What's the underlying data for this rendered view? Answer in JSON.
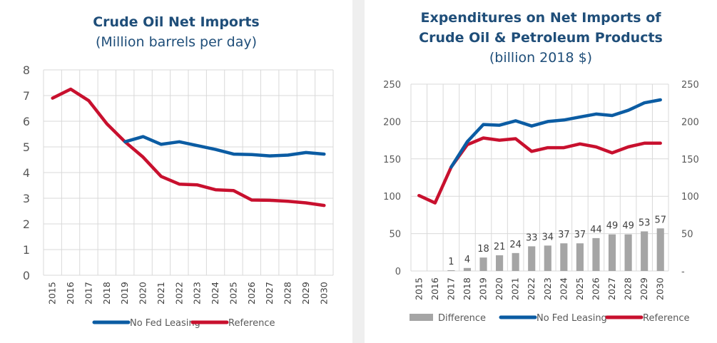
{
  "chart_data": [
    {
      "type": "line",
      "title": "Crude Oil Net Imports",
      "subtitle": "(Million barrels per day)",
      "xlabel": "",
      "ylabel": "",
      "ylim": [
        0,
        8
      ],
      "yticks": [
        "0",
        "1",
        "2",
        "3",
        "4",
        "5",
        "6",
        "7",
        "8"
      ],
      "categories": [
        "2015",
        "2016",
        "2017",
        "2018",
        "2019",
        "2020",
        "2021",
        "2022",
        "2023",
        "2024",
        "2025",
        "2026",
        "2027",
        "2028",
        "2029",
        "2030"
      ],
      "grid": true,
      "legend_position": "bottom",
      "series": [
        {
          "name": "No Fed Leasing",
          "color": "#0b5ca3",
          "values": [
            null,
            null,
            null,
            null,
            5.2,
            5.4,
            5.1,
            5.2,
            5.05,
            4.9,
            4.72,
            4.7,
            4.65,
            4.68,
            4.78,
            4.72
          ]
        },
        {
          "name": "Reference",
          "color": "#c8102e",
          "values": [
            6.9,
            7.25,
            6.8,
            5.9,
            5.2,
            4.6,
            3.85,
            3.55,
            3.52,
            3.33,
            3.3,
            2.93,
            2.92,
            2.88,
            2.82,
            2.72
          ]
        }
      ]
    },
    {
      "type": "bar",
      "title_line1": "Expenditures on Net Imports of",
      "title_line2": "Crude Oil & Petroleum Products",
      "subtitle": "(billion 2018 $)",
      "xlabel": "",
      "ylabel": "",
      "ylim": [
        0,
        250
      ],
      "yticks": [
        "0",
        "50",
        "100",
        "150",
        "200",
        "250"
      ],
      "yticks_right": [
        "-",
        "50",
        "100",
        "150",
        "200",
        "250"
      ],
      "categories": [
        "2015",
        "2016",
        "2017",
        "2018",
        "2019",
        "2020",
        "2021",
        "2022",
        "2023",
        "2024",
        "2025",
        "2026",
        "2027",
        "2028",
        "2029",
        "2030"
      ],
      "grid": true,
      "legend_position": "bottom",
      "bar_series": {
        "name": "Difference",
        "color": "#a5a5a5",
        "values": [
          null,
          null,
          1,
          4,
          18,
          21,
          24,
          33,
          34,
          37,
          37,
          44,
          49,
          49,
          53,
          57
        ],
        "labels": [
          "",
          "",
          "1",
          "4",
          "18",
          "21",
          "24",
          "33",
          "34",
          "37",
          "37",
          "44",
          "49",
          "49",
          "53",
          "57"
        ]
      },
      "series": [
        {
          "name": "No Fed Leasing",
          "color": "#0b5ca3",
          "values": [
            null,
            null,
            139,
            173,
            196,
            195,
            201,
            194,
            200,
            202,
            206,
            210,
            208,
            215,
            225,
            229
          ]
        },
        {
          "name": "Reference",
          "color": "#c8102e",
          "values": [
            101,
            91,
            139,
            169,
            178,
            175,
            177,
            160,
            165,
            165,
            170,
            166,
            158,
            166,
            171,
            171
          ]
        }
      ]
    }
  ]
}
